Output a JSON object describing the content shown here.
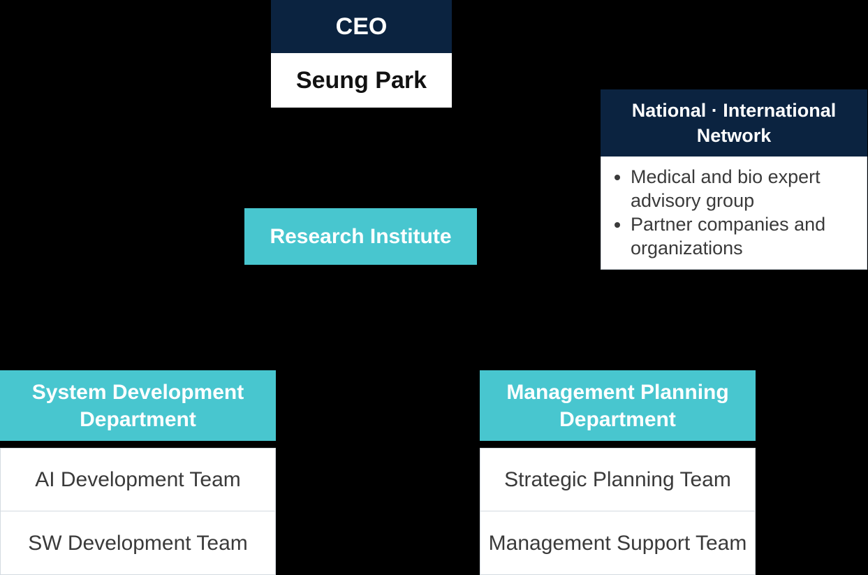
{
  "ceo": {
    "title": "CEO",
    "name": "Seung Park"
  },
  "research": {
    "label": "Research Institute"
  },
  "network": {
    "title": "National · International Network",
    "items": [
      "Medical and bio expert advisory group",
      "Partner companies and organizations"
    ]
  },
  "departments": [
    {
      "title": "System Development Department",
      "teams": [
        "AI Development Team",
        "SW Development Team"
      ]
    },
    {
      "title": "Management Planning Department",
      "teams": [
        "Strategic Planning Team",
        "Management Support Team"
      ]
    }
  ],
  "colors": {
    "navy": "#0b2340",
    "teal": "#48c6cf",
    "background": "#000000",
    "white": "#ffffff"
  }
}
